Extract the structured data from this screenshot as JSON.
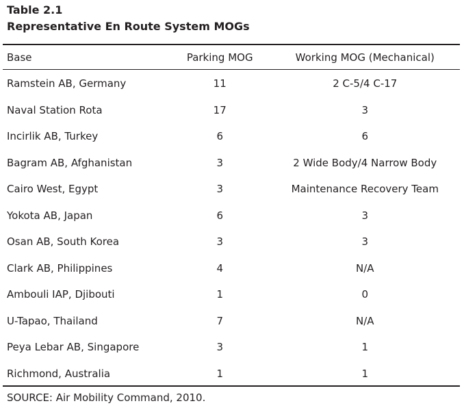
{
  "table": {
    "number": "Table 2.1",
    "title": "Representative En Route System MOGs",
    "headers": {
      "base": "Base",
      "parking": "Parking MOG",
      "working": "Working MOG (Mechanical)"
    },
    "rows": [
      {
        "base": "Ramstein AB, Germany",
        "parking": "11",
        "working": "2 C-5/4 C-17"
      },
      {
        "base": "Naval Station Rota",
        "parking": "17",
        "working": "3"
      },
      {
        "base": "Incirlik AB, Turkey",
        "parking": "6",
        "working": "6"
      },
      {
        "base": "Bagram AB, Afghanistan",
        "parking": "3",
        "working": "2 Wide Body/4 Narrow Body"
      },
      {
        "base": "Cairo West, Egypt",
        "parking": "3",
        "working": "Maintenance Recovery Team"
      },
      {
        "base": "Yokota AB, Japan",
        "parking": "6",
        "working": "3"
      },
      {
        "base": "Osan AB, South Korea",
        "parking": "3",
        "working": "3"
      },
      {
        "base": "Clark AB, Philippines",
        "parking": "4",
        "working": "N/A"
      },
      {
        "base": "Ambouli IAP, Djibouti",
        "parking": "1",
        "working": "0"
      },
      {
        "base": "U-Tapao, Thailand",
        "parking": "7",
        "working": "N/A"
      },
      {
        "base": "Peya Lebar AB, Singapore",
        "parking": "3",
        "working": "1"
      },
      {
        "base": "Richmond, Australia",
        "parking": "1",
        "working": "1"
      }
    ],
    "source": "SOURCE: Air Mobility Command, 2010."
  }
}
